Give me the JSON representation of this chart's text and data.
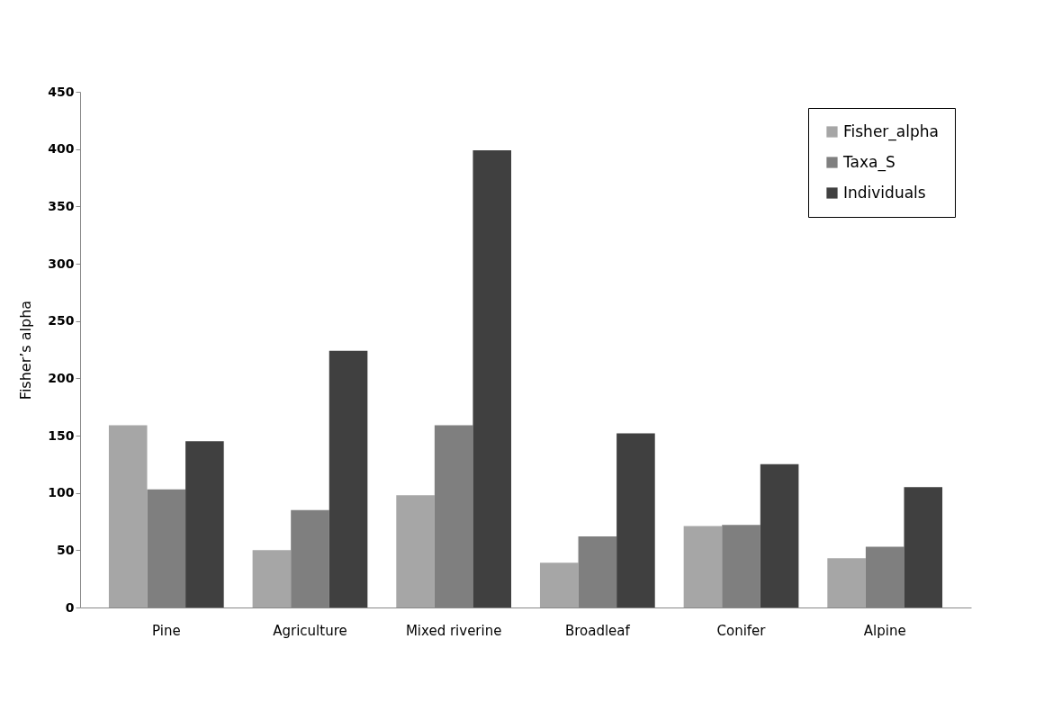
{
  "chart_data": {
    "type": "bar",
    "ylabel": "Fisher’s alpha",
    "categories": [
      "Pine",
      "Agriculture",
      "Mixed riverine",
      "Broadleaf",
      "Conifer",
      "Alpine"
    ],
    "series": [
      {
        "name": "Fisher_alpha",
        "color": "#a6a6a6",
        "values": [
          159,
          50,
          98,
          39,
          71,
          43
        ]
      },
      {
        "name": "Taxa_S",
        "color": "#7f7f7f",
        "values": [
          103,
          85,
          159,
          62,
          72,
          53
        ]
      },
      {
        "name": "Individuals",
        "color": "#404040",
        "values": [
          145,
          224,
          399,
          152,
          125,
          105
        ]
      }
    ],
    "ylim": [
      0,
      450
    ],
    "yticks": [
      0,
      50,
      100,
      150,
      200,
      250,
      300,
      350,
      400,
      450
    ],
    "grid": false,
    "legend": "top right"
  }
}
